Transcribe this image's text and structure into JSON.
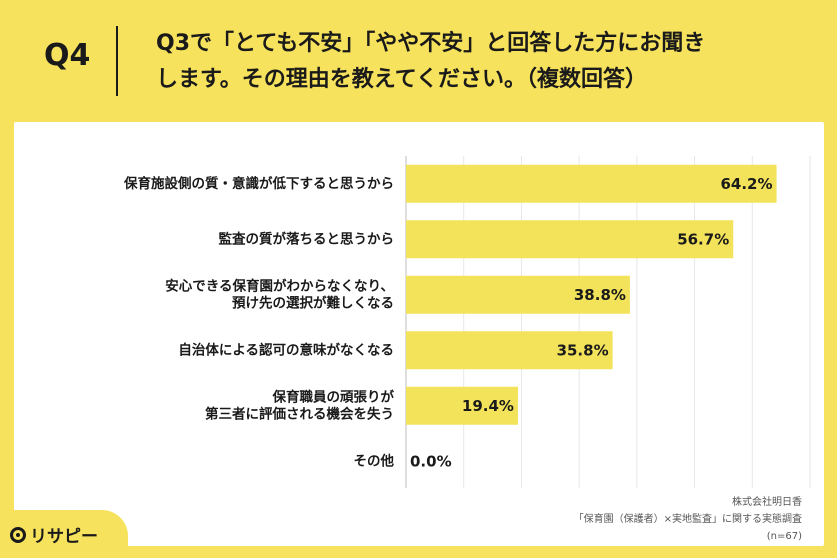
{
  "header": {
    "qnum": "Q4",
    "question_line1": "Q3で「とても不安」「やや不安」と回答した方にお聞き",
    "question_line2": "します。その理由を教えてください。（複数回答）"
  },
  "colors": {
    "background": "#f6e25c",
    "bar": "#f3e35a",
    "card": "#ffffff"
  },
  "chart_data": {
    "type": "bar",
    "orientation": "horizontal",
    "categories": [
      [
        "保育施設側の質・意識が低下すると思うから"
      ],
      [
        "監査の質が落ちると思うから"
      ],
      [
        "安心できる保育園がわからなくなり、",
        "預け先の選択が難しくなる"
      ],
      [
        "自治体による認可の意味がなくなる"
      ],
      [
        "保育職員の頑張りが",
        "第三者に評価される機会を失う"
      ],
      [
        "その他"
      ]
    ],
    "values": [
      64.2,
      56.7,
      38.8,
      35.8,
      19.4,
      0.0
    ],
    "value_labels": [
      "64.2%",
      "56.7%",
      "38.8%",
      "35.8%",
      "19.4%",
      "0.0%"
    ],
    "xlim": [
      0,
      70
    ],
    "grid": true
  },
  "source": {
    "line1": "株式会社明日香",
    "line2": "「保育園（保護者）×実地監査」に関する実態調査",
    "line3": "(n=67)"
  },
  "logo": {
    "text": "リサピー"
  }
}
